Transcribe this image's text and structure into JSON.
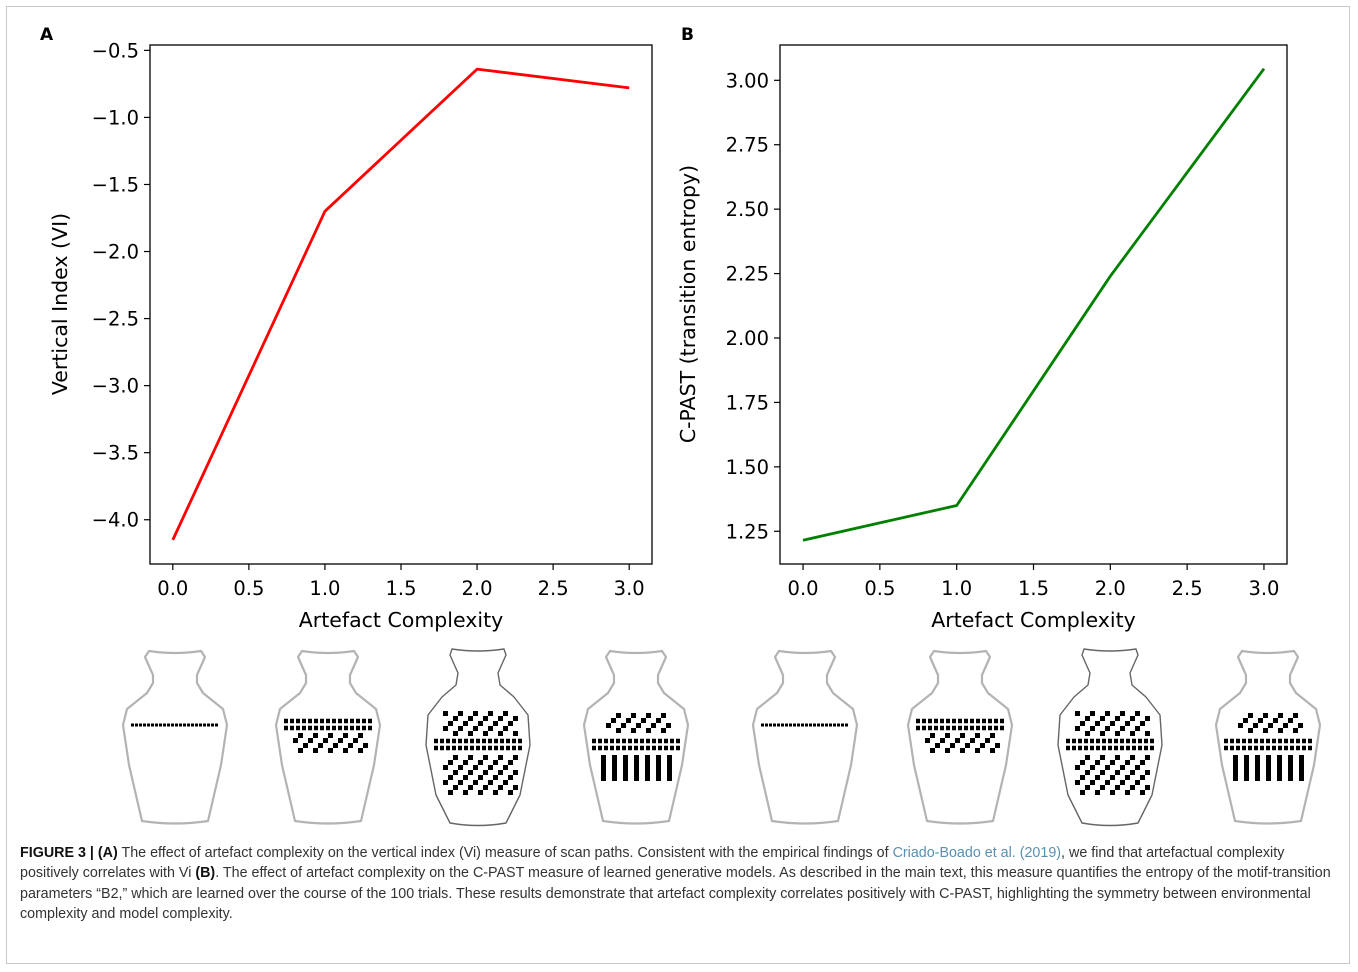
{
  "chart_data": [
    {
      "panel": "A",
      "type": "line",
      "xlabel": "Artefact Complexity",
      "ylabel": "Vertical Index (VI)",
      "x": [
        0,
        1,
        2,
        3
      ],
      "series": [
        {
          "values": [
            -4.15,
            -1.7,
            -0.64,
            -0.78
          ],
          "color": "#ff0000"
        }
      ],
      "xlim": [
        -0.15,
        3.15
      ],
      "ylim": [
        -4.33,
        -0.46
      ],
      "xticks": [
        "0.0",
        "0.5",
        "1.0",
        "1.5",
        "2.0",
        "2.5",
        "3.0"
      ],
      "xtick_values": [
        0,
        0.5,
        1,
        1.5,
        2,
        2.5,
        3
      ],
      "yticks": [
        "−0.5",
        "−1.0",
        "−1.5",
        "−2.0",
        "−2.5",
        "−3.0",
        "−3.5",
        "−4.0"
      ],
      "ytick_values": [
        -0.5,
        -1.0,
        -1.5,
        -2.0,
        -2.5,
        -3.0,
        -3.5,
        -4.0
      ],
      "grid": false
    },
    {
      "panel": "B",
      "type": "line",
      "xlabel": "Artefact Complexity",
      "ylabel": "C-PAST (transition entropy)",
      "x": [
        0,
        1,
        2,
        3
      ],
      "series": [
        {
          "values": [
            1.215,
            1.35,
            2.24,
            3.045
          ],
          "color": "#008000"
        }
      ],
      "xlim": [
        -0.15,
        3.15
      ],
      "ylim": [
        1.123,
        3.137
      ],
      "xticks": [
        "0.0",
        "0.5",
        "1.0",
        "1.5",
        "2.0",
        "2.5",
        "3.0"
      ],
      "xtick_values": [
        0,
        0.5,
        1,
        1.5,
        2,
        2.5,
        3
      ],
      "yticks": [
        "3.00",
        "2.75",
        "2.50",
        "2.25",
        "2.00",
        "1.75",
        "1.50",
        "1.25"
      ],
      "ytick_values": [
        3.0,
        2.75,
        2.5,
        2.25,
        2.0,
        1.75,
        1.5,
        1.25
      ],
      "grid": false
    }
  ],
  "caption": {
    "figure_label": "FIGURE 3 |",
    "part_a_label": "(A)",
    "text_1": " The effect of artefact complexity on the vertical index (Vi) measure of scan paths. Consistent with the empirical findings of ",
    "citation": "Criado-Boado et al. (2019)",
    "text_2": ", we find that artefactual complexity positively correlates with Vi ",
    "part_b_label": "(B)",
    "text_3": ". The effect of artefact complexity on the C-PAST measure of learned generative models. As described in the main text, this measure quantifies the entropy of the motif-transition parameters “B2,” which are learned over the course of the 100 trials. These results demonstrate that artefact complexity correlates positively with C-PAST, highlighting the symmetry between environmental complexity and model complexity."
  }
}
